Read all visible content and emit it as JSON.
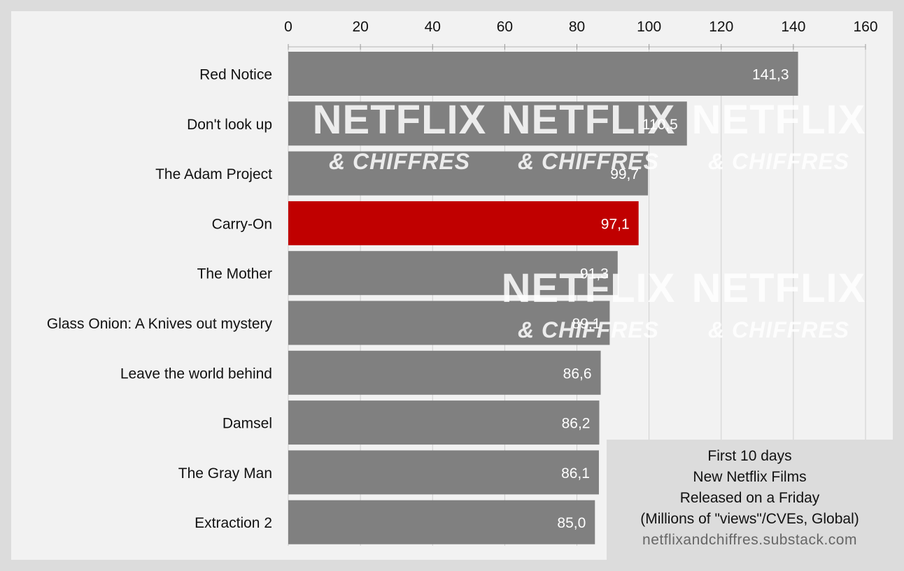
{
  "chart_data": {
    "type": "bar",
    "orientation": "horizontal",
    "categories": [
      "Red Notice",
      "Don't look up",
      "The Adam Project",
      "Carry-On",
      "The Mother",
      "Glass Onion: A Knives out mystery",
      "Leave the world behind",
      "Damsel",
      "The Gray Man",
      "Extraction 2"
    ],
    "values": [
      141.3,
      110.5,
      99.7,
      97.1,
      91.3,
      89.1,
      86.6,
      86.2,
      86.1,
      85.0
    ],
    "value_labels": [
      "141,3",
      "110,5",
      "99,7",
      "97,1",
      "91,3",
      "89,1",
      "86,6",
      "86,2",
      "86,1",
      "85,0"
    ],
    "highlight_index": 3,
    "colors": {
      "bar": "#808080",
      "highlight": "#c00000",
      "value_text": "#ffffff",
      "background": "#f2f2f2",
      "frame": "#dcdcdc",
      "grid": "#cfcfcf"
    },
    "xlim": [
      0,
      160
    ],
    "xticks": [
      0,
      20,
      40,
      60,
      80,
      100,
      120,
      140,
      160
    ],
    "xaxis_position": "top",
    "grid": true,
    "title": "",
    "xlabel": "",
    "ylabel": ""
  },
  "info_box": {
    "lines": [
      "First 10 days",
      "New Netflix Films",
      "Released on a Friday",
      "(Millions of \"views\"/CVEs, Global)"
    ],
    "source": "netflixandchiffres.substack.com"
  },
  "watermark": {
    "line1": "NETFLIX",
    "line2": "& CHIFFRES"
  }
}
